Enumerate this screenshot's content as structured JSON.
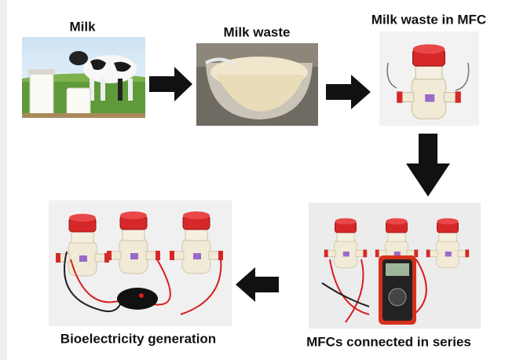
{
  "steps": [
    {
      "label": "Milk"
    },
    {
      "label": "Milk waste"
    },
    {
      "label": "Milk waste in MFC"
    },
    {
      "label": "MFCs connected in series"
    },
    {
      "label": "Bioelectricity generation"
    }
  ]
}
